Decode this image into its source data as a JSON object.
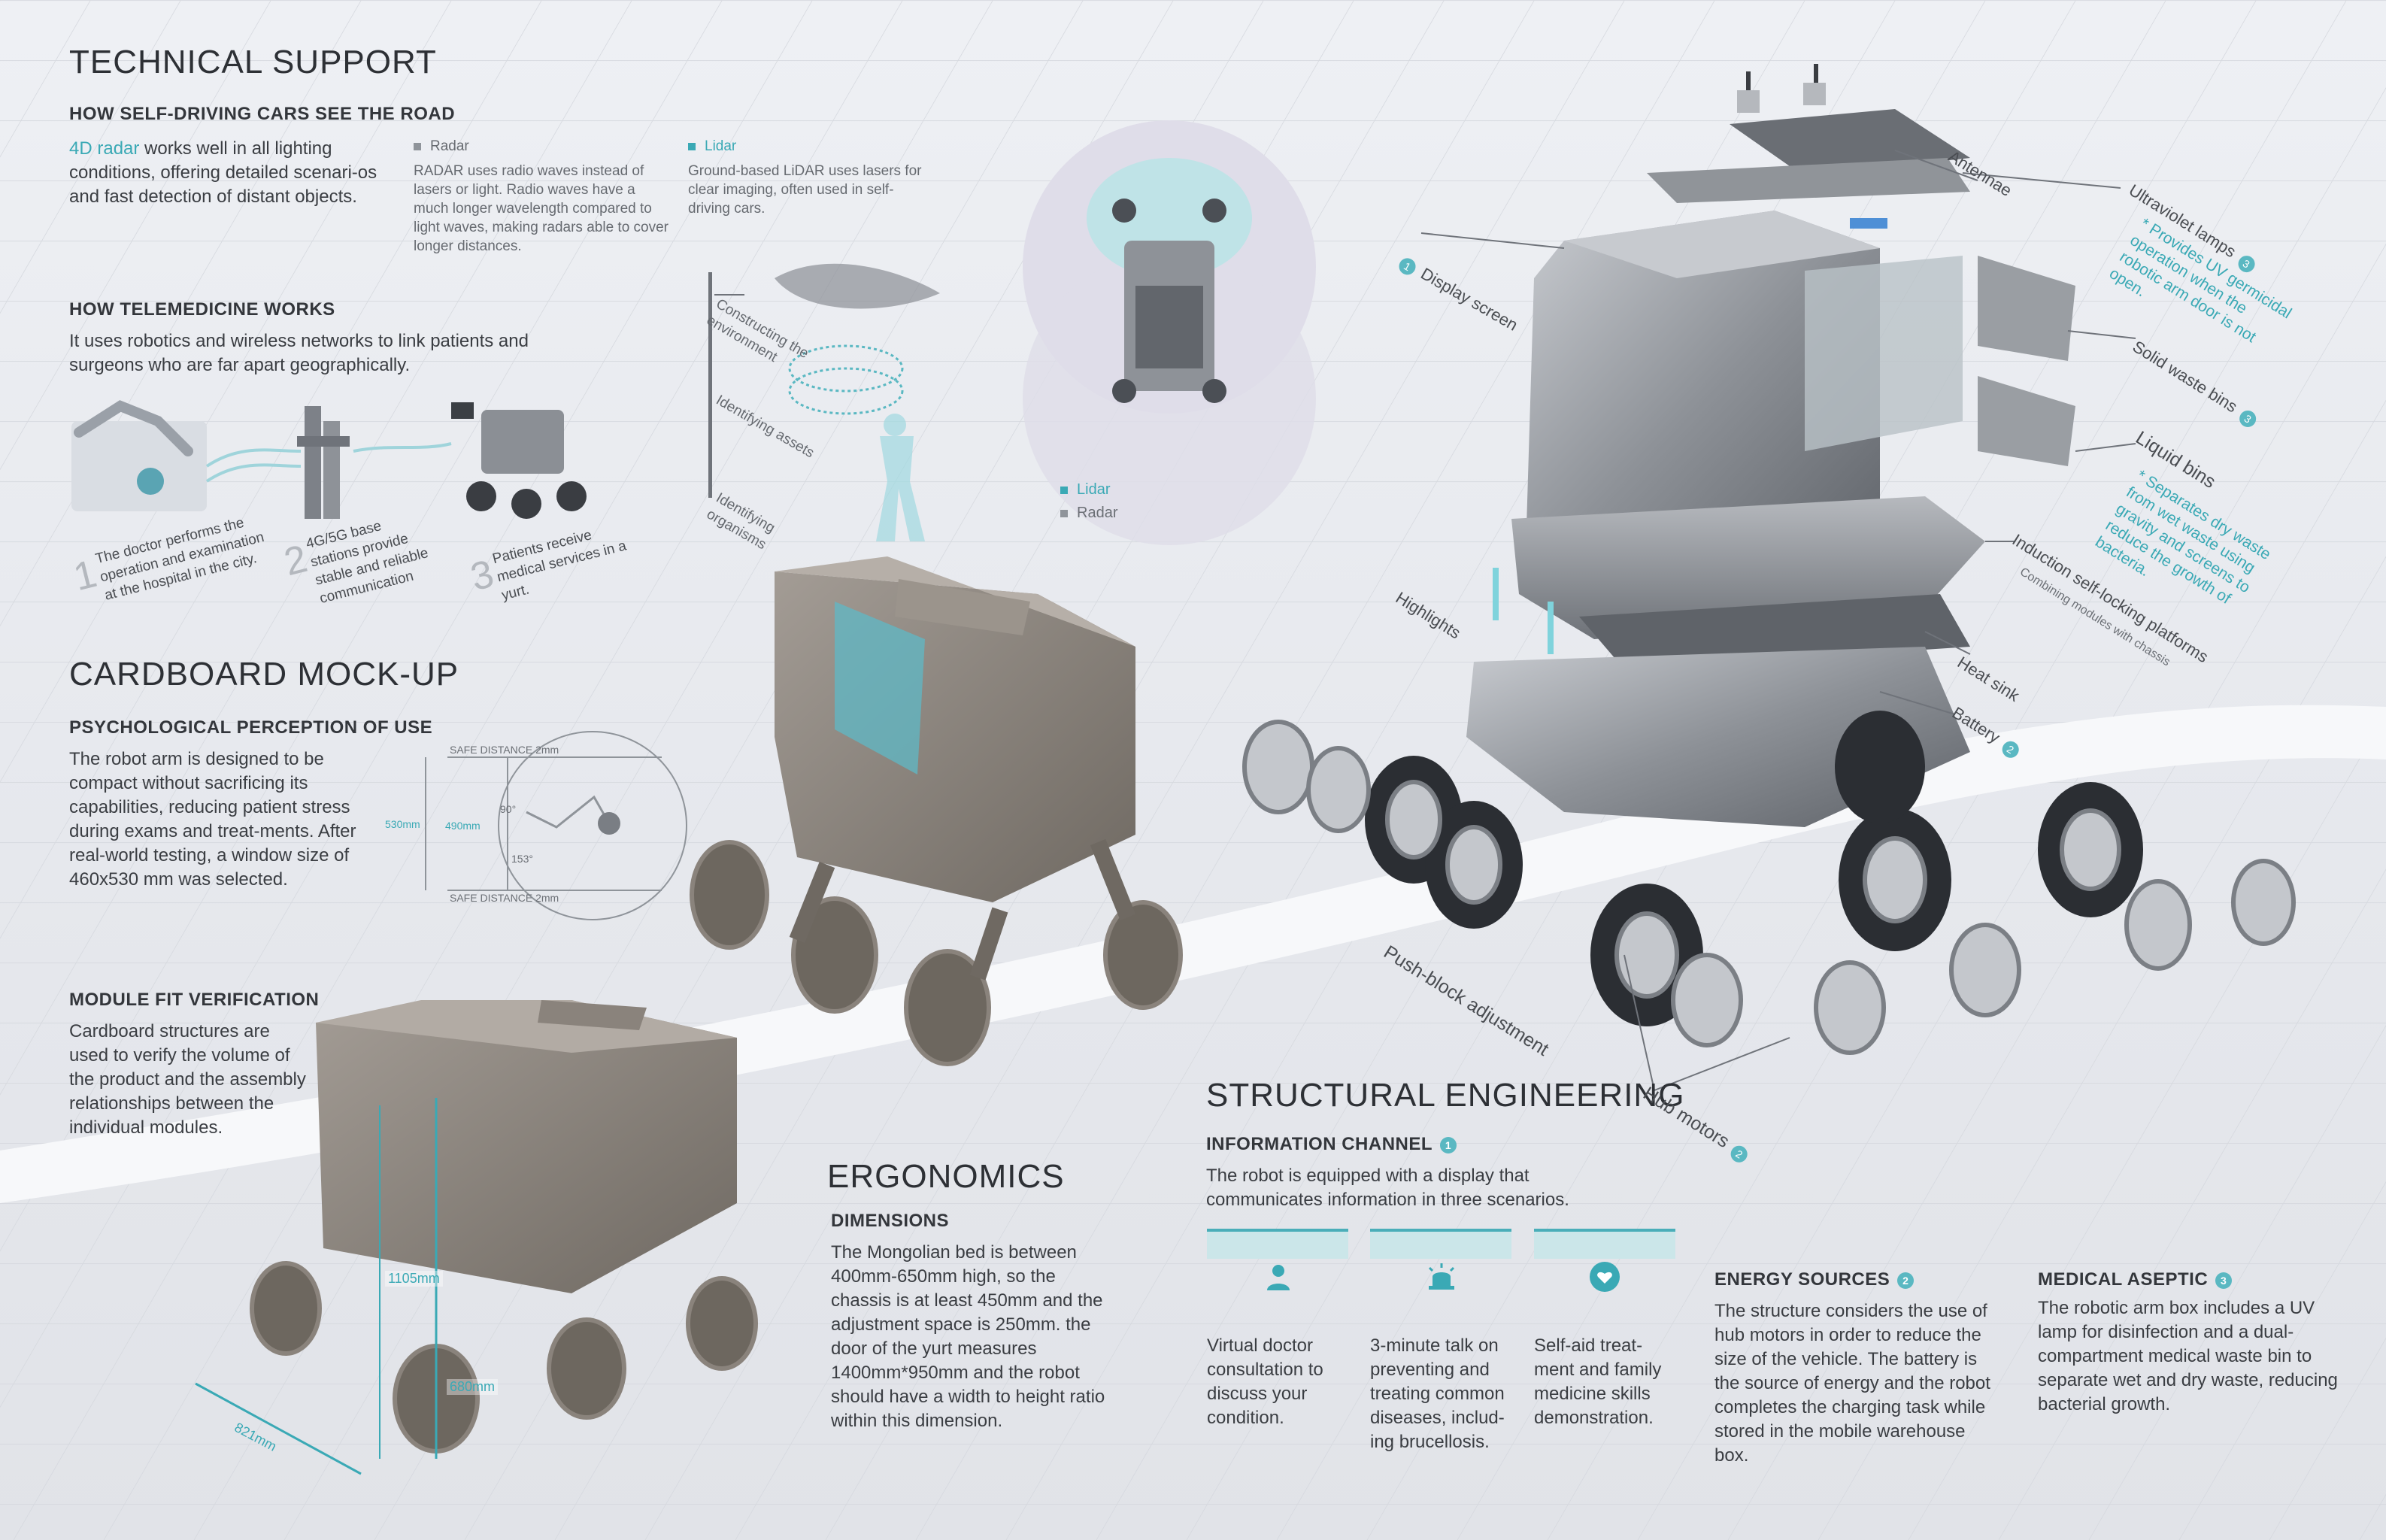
{
  "colors": {
    "teal": "#3aa9b5",
    "text": "#2d3035",
    "muted": "#6b6f75",
    "cardboard": "#8d8680",
    "metal": "#8e9196"
  },
  "technical_support": {
    "title": "TECHNICAL SUPPORT",
    "selfdriving_heading": "HOW SELF-DRIVING CARS SEE THE ROAD",
    "radar_link": "4D radar",
    "radar_text": "works well in all lighting conditions, offering detailed scenari-os and fast detection of distant objects.",
    "radar_label": "Radar",
    "radar_desc": "RADAR uses radio waves instead of lasers or light. Radio waves have a much longer wavelength compared to light waves, making radars able to cover longer distances.",
    "lidar_label": "Lidar",
    "lidar_desc": "Ground-based LiDAR uses lasers for clear imaging, often used in self-driving cars.",
    "lidar_steps": [
      "Constructing the environment",
      "Identifying assets",
      "Identifying organisms"
    ],
    "sensor_legend": [
      "Lidar",
      "Radar"
    ],
    "telemedicine_heading": "HOW TELEMEDICINE WORKS",
    "telemedicine_text": "It uses robotics and wireless networks to link patients and surgeons who are far apart geographically.",
    "steps": [
      {
        "num": "1",
        "text": "The doctor performs the operation and examination at the hospital in the city."
      },
      {
        "num": "2",
        "text": "4G/5G base stations provide stable and reliable communication"
      },
      {
        "num": "3",
        "text": "Patients receive medical services in a yurt."
      }
    ]
  },
  "cardboard": {
    "title": "CARDBOARD MOCK-UP",
    "perception_heading": "PSYCHOLOGICAL PERCEPTION OF USE",
    "perception_text": "The robot arm is designed to be compact without sacrificing its capabilities, reducing patient stress during exams and treat-ments. After real-world testing, a window size of 460x530 mm was selected.",
    "diagram_labels": {
      "safe_top": "SAFE DISTANCE 2mm",
      "safe_bottom": "SAFE DISTANCE 2mm",
      "h530": "530mm",
      "w490": "490mm",
      "a90": "90°",
      "a153": "153°"
    },
    "module_heading": "MODULE FIT VERIFICATION",
    "module_text": "Cardboard structures are used to verify the volume of the product and the assembly relationships between the individual modules.",
    "dim_1105": "1105mm",
    "dim_680": "680mm",
    "dim_821": "821mm"
  },
  "ergonomics": {
    "title": "ERGONOMICS",
    "heading": "DIMENSIONS",
    "text": "The Mongolian bed is between 400mm-650mm high, so the chassis is at least 450mm and the adjustment space is 250mm. the door of the yurt measures 1400mm*950mm and the robot should have a width to height ratio within this dimension."
  },
  "structural": {
    "title": "STRUCTURAL ENGINEERING",
    "info_heading": "INFORMATION CHANNEL",
    "info_badge": "1",
    "info_text": "The robot is equipped with a display that communicates information in three scenarios.",
    "cards": [
      {
        "icon": "person-icon",
        "text": "Virtual doctor consultation to discuss your condition."
      },
      {
        "icon": "alarm-icon",
        "text": "3-minute talk on preventing and treating common diseases, includ-ing brucellosis."
      },
      {
        "icon": "heart-shield-icon",
        "text": "Self-aid treat-ment and family medicine skills demonstration."
      }
    ],
    "energy_heading": "ENERGY SOURCES",
    "energy_badge": "2",
    "energy_text": "The structure considers the use of hub motors in order to reduce the size of the vehicle. The battery is the source of energy and the robot completes the charging task while stored in the mobile warehouse box.",
    "aseptic_heading": "MEDICAL ASEPTIC",
    "aseptic_badge": "3",
    "aseptic_text": "The robotic arm box includes a UV lamp for disinfection and a dual-compartment medical waste bin to separate wet and dry waste, reducing bacterial growth."
  },
  "callouts": {
    "antennae": "Antennae",
    "uv_lamps": "Ultraviolet lamps",
    "uv_badge": "3",
    "uv_desc": "* Provides UV germicidal operation when the robotic arm door is not open.",
    "display_screen": "Display screen",
    "display_badge": "1",
    "solid_waste": "Solid waste bins",
    "solid_badge": "3",
    "liquid_bins": "Liquid bins",
    "liquid_desc": "* Separates dry waste from wet waste using gravity and screens to reduce the growth of bacteria.",
    "induction": "Induction self-locking platforms",
    "induction_sub": "Combining modules with chassis",
    "highlights": "Highlights",
    "heat_sink": "Heat sink",
    "battery": "Battery",
    "battery_badge": "2",
    "push_block": "Push-block adjustment",
    "hub_motors": "Hub motors",
    "hub_badge": "2"
  }
}
